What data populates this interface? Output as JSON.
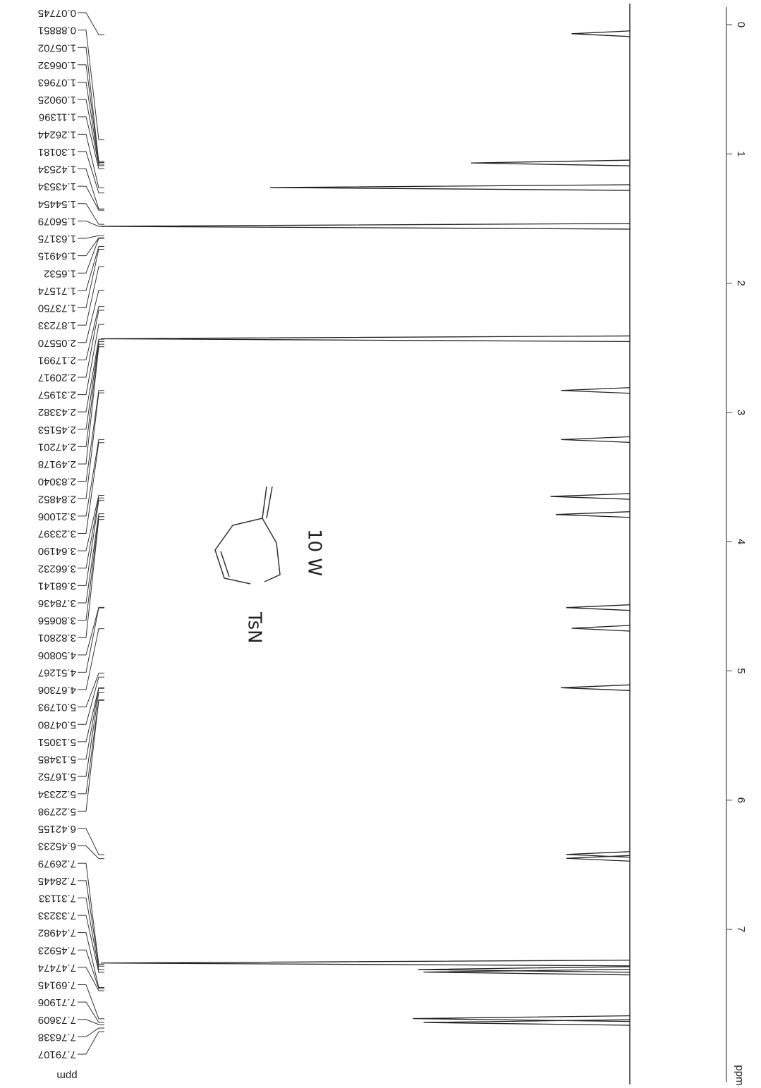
{
  "chart_data": {
    "type": "nmr",
    "xlabel": "ppm",
    "xlim": [
      -0.05,
      8.0
    ],
    "xticks": [
      0,
      1,
      2,
      3,
      4,
      5,
      6,
      7
    ],
    "ylim": [
      0,
      100
    ],
    "color": "#222222",
    "peak_list_title": "ppm",
    "peak_labels": [
      0.07745,
      0.88851,
      1.05702,
      1.06632,
      1.07963,
      1.09025,
      1.11396,
      1.26244,
      1.30181,
      1.42534,
      1.43534,
      1.54454,
      1.56079,
      1.63175,
      1.64915,
      1.6532,
      1.71574,
      {
        "value": 1.7375,
        "label": "1.73750"
      },
      1.87233,
      {
        "value": 2.0557,
        "label": "2.05570"
      },
      2.17991,
      2.20917,
      2.31957,
      2.43382,
      2.45153,
      2.47201,
      2.49178,
      {
        "value": 2.8304,
        "label": "2.83040"
      },
      2.84852,
      3.21006,
      3.23397,
      {
        "value": 3.6419,
        "label": "3.64190"
      },
      3.66232,
      3.68141,
      3.78436,
      3.80656,
      3.82801,
      4.50806,
      4.51267,
      4.67306,
      5.01793,
      {
        "value": 5.0478,
        "label": "5.04780"
      },
      5.13051,
      5.13485,
      5.16752,
      5.22334,
      5.22798,
      6.42155,
      6.45233,
      7.26979,
      7.28445,
      7.31133,
      7.33233,
      7.44982,
      7.45923,
      7.47474,
      7.69145,
      7.71906,
      7.73609,
      7.76338,
      7.79107
    ],
    "x": [
      0.07,
      1.07,
      1.26,
      1.56,
      2.43,
      2.83,
      3.21,
      3.65,
      3.79,
      4.51,
      4.67,
      5.13,
      6.42,
      6.45,
      7.26,
      7.31,
      7.33,
      7.69,
      7.72
    ],
    "values": [
      11,
      30,
      68,
      100,
      100,
      13,
      13,
      15,
      14,
      12,
      11,
      13,
      12,
      12,
      100,
      40,
      39,
      41,
      39
    ],
    "annotations": [
      "TsN",
      "10 W"
    ]
  }
}
